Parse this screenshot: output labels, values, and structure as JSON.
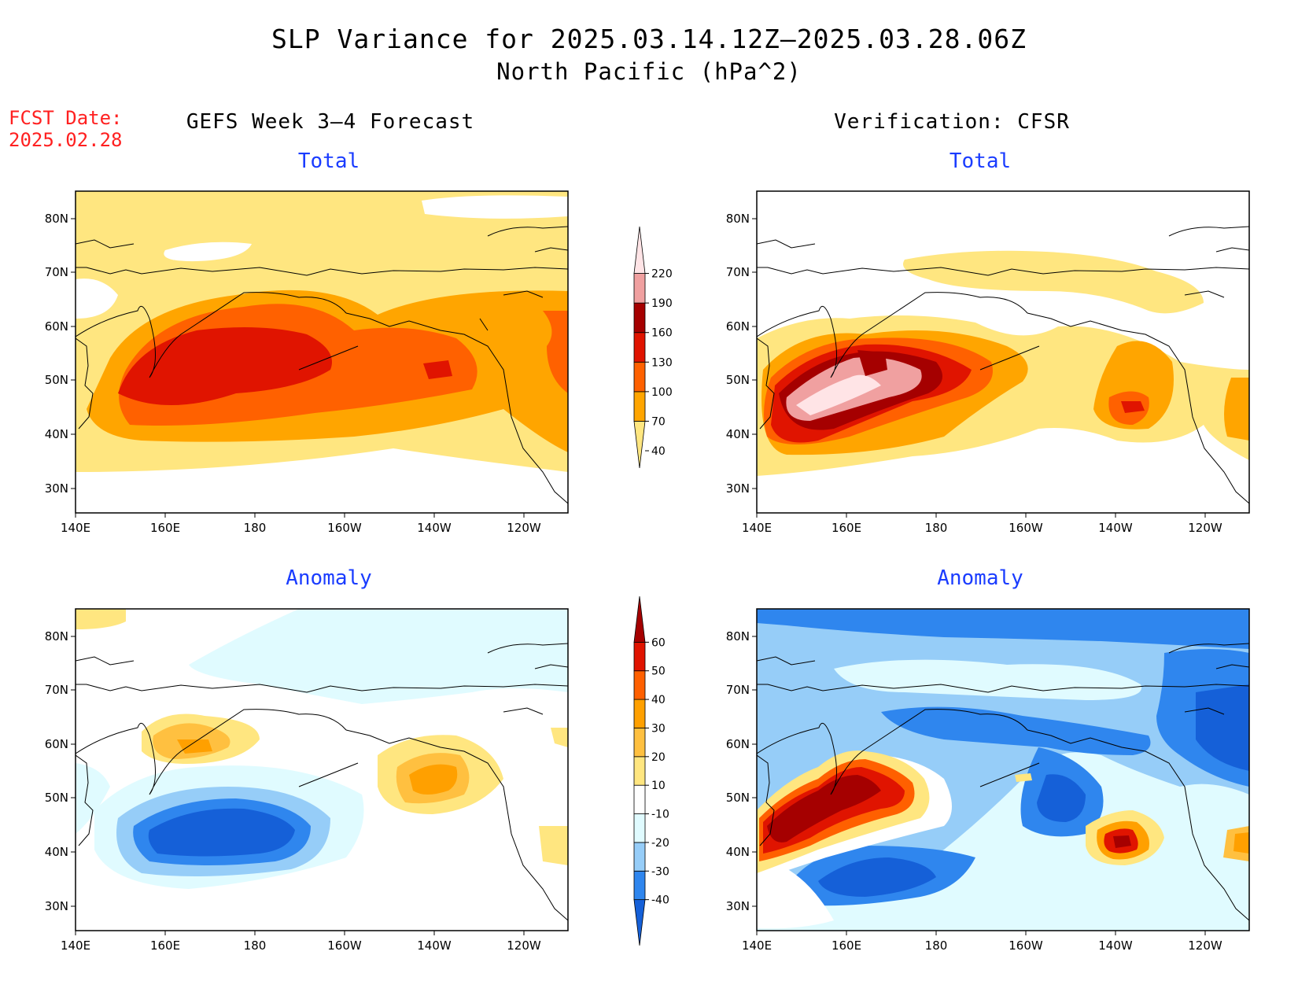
{
  "title": "SLP Variance for 2025.03.14.12Z–2025.03.28.06Z",
  "subtitle": "North Pacific (hPa^2)",
  "fcst_date": {
    "label": "FCST Date:",
    "value": "2025.02.28"
  },
  "columns": {
    "left": "GEFS Week 3–4 Forecast",
    "right": "Verification: CFSR"
  },
  "panels": [
    {
      "id": "gefs-total",
      "label": "Total"
    },
    {
      "id": "cfsr-total",
      "label": "Total"
    },
    {
      "id": "gefs-anomaly",
      "label": "Anomaly"
    },
    {
      "id": "cfsr-anomaly",
      "label": "Anomaly"
    }
  ],
  "axes": {
    "lon_ticks": [
      "140E",
      "160E",
      "180",
      "160W",
      "140W",
      "120W"
    ],
    "lat_ticks": [
      "80N",
      "70N",
      "60N",
      "50N",
      "40N",
      "30N"
    ]
  },
  "colorbars": {
    "total": {
      "levels": [
        "40",
        "70",
        "100",
        "130",
        "160",
        "190",
        "220"
      ],
      "colors": [
        "#ffe680",
        "#ffa500",
        "#ff6100",
        "#e01400",
        "#a50000",
        "#f0a0a0",
        "#ffe4e6"
      ]
    },
    "anomaly": {
      "levels": [
        "-40",
        "-30",
        "-20",
        "-10",
        "10",
        "20",
        "30",
        "40",
        "50",
        "60"
      ],
      "colors": [
        "#1560d8",
        "#2f86ee",
        "#96cdf8",
        "#e0fbff",
        "#ffffff",
        "#ffe680",
        "#ffc040",
        "#ffa000",
        "#ff6000",
        "#e01400",
        "#a50000"
      ]
    }
  }
}
